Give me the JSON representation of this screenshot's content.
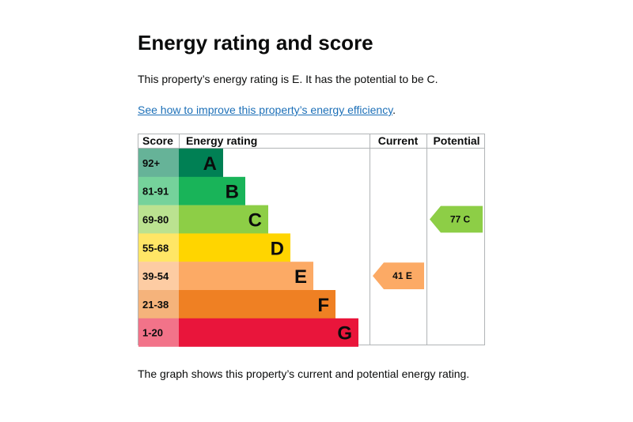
{
  "page": {
    "title": "Energy rating and score",
    "summary": "This property’s energy rating is E. It has the potential to be C.",
    "link_text": "See how to improve this property’s energy efficiency",
    "link_suffix": ".",
    "footnote": "The graph shows this property’s current and potential energy rating."
  },
  "chart_data": {
    "type": "table",
    "headers": {
      "score": "Score",
      "rating": "Energy rating",
      "current": "Current",
      "potential": "Potential"
    },
    "bands": [
      {
        "letter": "A",
        "range": "92+",
        "color": "#008054",
        "range_bg": "#66b398"
      },
      {
        "letter": "B",
        "range": "81-91",
        "color": "#19b459",
        "range_bg": "#75d29b"
      },
      {
        "letter": "C",
        "range": "69-80",
        "color": "#8dce46",
        "range_bg": "#bbe290"
      },
      {
        "letter": "D",
        "range": "55-68",
        "color": "#ffd500",
        "range_bg": "#ffe666"
      },
      {
        "letter": "E",
        "range": "39-54",
        "color": "#fcaa65",
        "range_bg": "#fdcca3"
      },
      {
        "letter": "F",
        "range": "21-38",
        "color": "#ef8023",
        "range_bg": "#f5b37b"
      },
      {
        "letter": "G",
        "range": "1-20",
        "color": "#e9153b",
        "range_bg": "#f27389"
      }
    ],
    "current": {
      "score": 41,
      "band": "E",
      "label": "41 E"
    },
    "potential": {
      "score": 77,
      "band": "C",
      "label": "77 C"
    }
  }
}
